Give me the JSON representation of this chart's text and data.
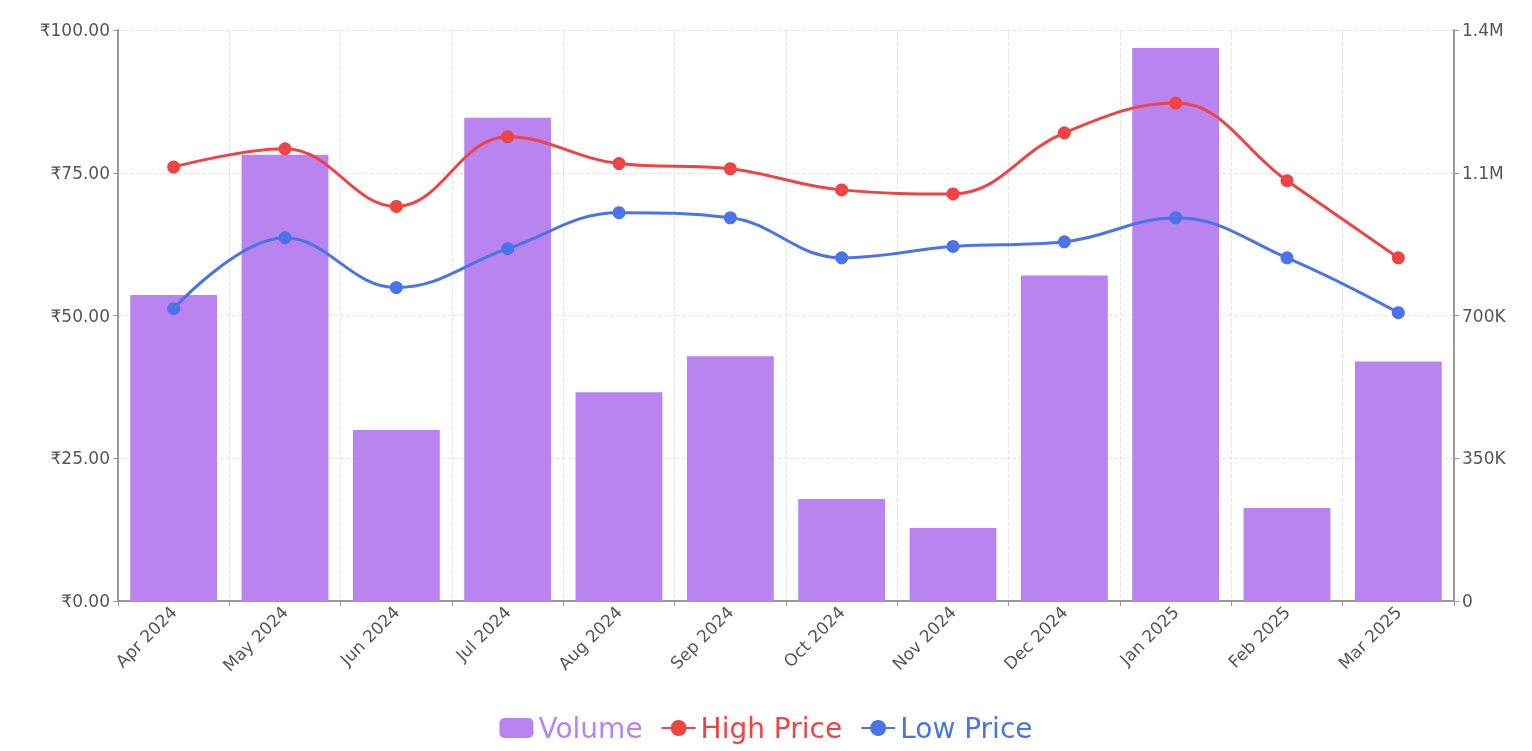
{
  "chart_data": {
    "type": "bar",
    "categories": [
      "Apr 2024",
      "May 2024",
      "Jun 2024",
      "Jul 2024",
      "Aug 2024",
      "Sep 2024",
      "Oct 2024",
      "Nov 2024",
      "Dec 2024",
      "Jan 2025",
      "Feb 2025",
      "Mar 2025"
    ],
    "series": [
      {
        "name": "Volume",
        "axis": "y2",
        "color": "#b983f0",
        "values": [
          750000,
          1094000,
          419000,
          1185000,
          512000,
          600000,
          250000,
          179000,
          798000,
          1356000,
          228000,
          587000
        ]
      },
      {
        "name": "High Price",
        "type": "line",
        "color": "#ef4444",
        "values": [
          76.0,
          79.2,
          69.1,
          81.3,
          76.6,
          75.7,
          72.0,
          71.3,
          82.0,
          87.2,
          73.6,
          60.1
        ]
      },
      {
        "name": "Low Price",
        "type": "line",
        "color": "#4a74e8",
        "values": [
          51.2,
          63.6,
          54.9,
          61.7,
          68.0,
          67.1,
          60.1,
          62.1,
          62.9,
          67.1,
          60.1,
          50.5
        ]
      }
    ],
    "ylim": [
      0,
      100
    ],
    "yticks": [
      {
        "value": 0,
        "label": "₹0.00"
      },
      {
        "value": 25,
        "label": "₹25.00"
      },
      {
        "value": 50,
        "label": "₹50.00"
      },
      {
        "value": 75,
        "label": "₹75.00"
      },
      {
        "value": 100,
        "label": "₹100.00"
      }
    ],
    "y2lim": [
      0,
      1400000
    ],
    "y2ticks": [
      {
        "value": 0,
        "label": "0"
      },
      {
        "value": 350000,
        "label": "350K"
      },
      {
        "value": 700000,
        "label": "700K"
      },
      {
        "value": 1050000,
        "label": "1.1M"
      },
      {
        "value": 1400000,
        "label": "1.4M"
      }
    ],
    "grid": true,
    "legend": "bottom",
    "marker": "circle",
    "line_style": "solid"
  }
}
